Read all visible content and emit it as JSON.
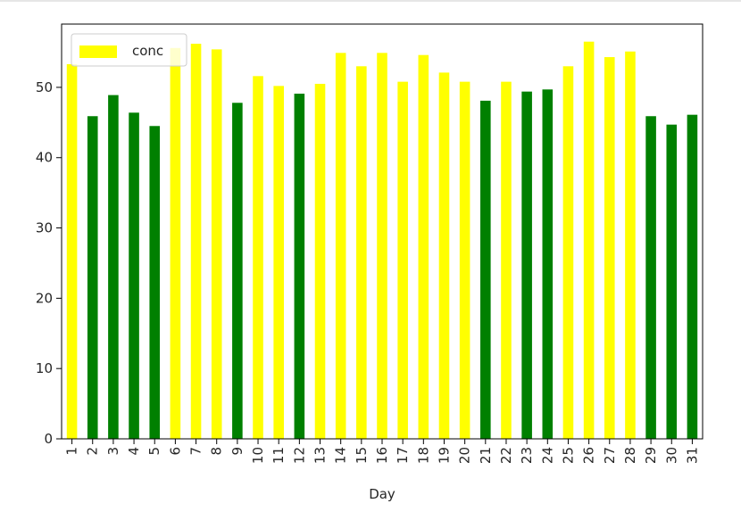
{
  "chart_data": {
    "type": "bar",
    "title": "",
    "xlabel": "Day",
    "ylabel": "",
    "ylim": [
      0,
      59
    ],
    "yticks": [
      0,
      10,
      20,
      30,
      40,
      50
    ],
    "grid": false,
    "legend": {
      "placement": "top-left",
      "entries": [
        "conc"
      ],
      "swatch_color": "#ffff00"
    },
    "colors": {
      "high": "#ffff00",
      "low": "#008000"
    },
    "categories": [
      "1",
      "2",
      "3",
      "4",
      "5",
      "6",
      "7",
      "8",
      "9",
      "10",
      "11",
      "12",
      "13",
      "14",
      "15",
      "16",
      "17",
      "18",
      "19",
      "20",
      "21",
      "22",
      "23",
      "24",
      "25",
      "26",
      "27",
      "28",
      "29",
      "30",
      "31"
    ],
    "series": [
      {
        "name": "conc",
        "values": [
          53.3,
          45.9,
          48.9,
          46.4,
          44.5,
          55.6,
          56.2,
          55.4,
          47.8,
          51.6,
          50.2,
          49.1,
          50.5,
          54.9,
          53.0,
          54.9,
          50.8,
          54.6,
          52.1,
          50.8,
          48.1,
          50.8,
          49.4,
          49.7,
          53.0,
          56.5,
          54.3,
          55.1,
          45.9,
          44.7,
          46.1
        ],
        "bar_colors": [
          "#ffff00",
          "#008000",
          "#008000",
          "#008000",
          "#008000",
          "#ffff00",
          "#ffff00",
          "#ffff00",
          "#008000",
          "#ffff00",
          "#ffff00",
          "#008000",
          "#ffff00",
          "#ffff00",
          "#ffff00",
          "#ffff00",
          "#ffff00",
          "#ffff00",
          "#ffff00",
          "#ffff00",
          "#008000",
          "#ffff00",
          "#008000",
          "#008000",
          "#ffff00",
          "#ffff00",
          "#ffff00",
          "#ffff00",
          "#008000",
          "#008000",
          "#008000"
        ]
      }
    ]
  }
}
